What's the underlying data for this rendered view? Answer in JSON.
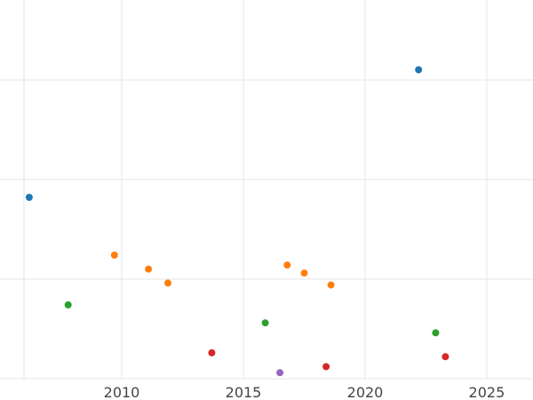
{
  "chart_data": {
    "type": "scatter",
    "title": "",
    "xlabel": "",
    "ylabel": "",
    "xlim": [
      2005.0,
      2026.9
    ],
    "ylim": [
      0,
      19
    ],
    "x_ticks": [
      2010,
      2015,
      2020,
      2025
    ],
    "x_tick_labels": [
      "2010",
      "2015",
      "2020",
      "2025"
    ],
    "y_gridlines": [
      0,
      5,
      10,
      15
    ],
    "grid": true,
    "legend": "none",
    "points": [
      {
        "x": 2006.2,
        "y": 9.1,
        "color": "#1f77b4"
      },
      {
        "x": 2022.2,
        "y": 15.5,
        "color": "#1f77b4"
      },
      {
        "x": 2009.7,
        "y": 6.2,
        "color": "#ff7f0e"
      },
      {
        "x": 2011.1,
        "y": 5.5,
        "color": "#ff7f0e"
      },
      {
        "x": 2011.9,
        "y": 4.8,
        "color": "#ff7f0e"
      },
      {
        "x": 2016.8,
        "y": 5.7,
        "color": "#ff7f0e"
      },
      {
        "x": 2017.5,
        "y": 5.3,
        "color": "#ff7f0e"
      },
      {
        "x": 2018.6,
        "y": 4.7,
        "color": "#ff7f0e"
      },
      {
        "x": 2007.8,
        "y": 3.7,
        "color": "#2ca02c"
      },
      {
        "x": 2015.9,
        "y": 2.8,
        "color": "#2ca02c"
      },
      {
        "x": 2022.9,
        "y": 2.3,
        "color": "#2ca02c"
      },
      {
        "x": 2013.7,
        "y": 1.3,
        "color": "#d62728"
      },
      {
        "x": 2018.4,
        "y": 0.6,
        "color": "#d62728"
      },
      {
        "x": 2023.3,
        "y": 1.1,
        "color": "#d62728"
      },
      {
        "x": 2016.5,
        "y": 0.3,
        "color": "#9467bd"
      }
    ]
  }
}
